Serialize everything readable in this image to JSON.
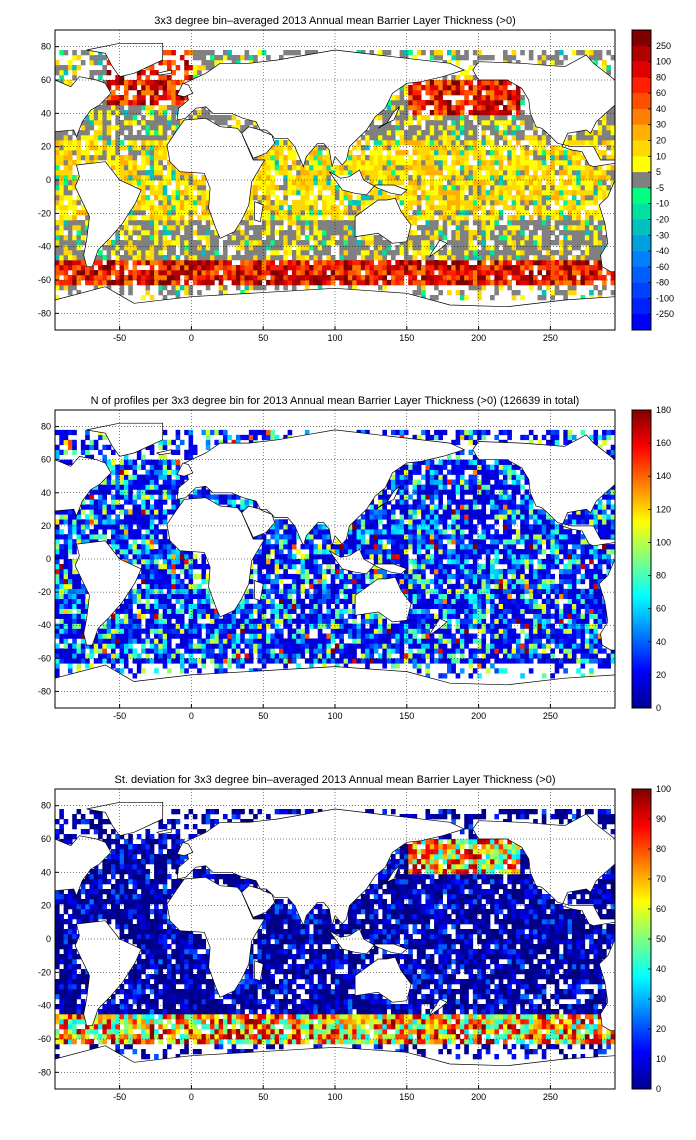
{
  "chart_data": [
    {
      "type": "heatmap",
      "title": "3x3 degree bin–averaged 2013 Annual mean Barrier Layer Thickness (>0)",
      "xlim": [
        -95,
        295
      ],
      "ylim": [
        -90,
        90
      ],
      "xticks": [
        "-50",
        "0",
        "50",
        "100",
        "150",
        "200",
        "250"
      ],
      "yticks": [
        "80",
        "60",
        "40",
        "20",
        "0",
        "-20",
        "-40",
        "-60",
        "-80"
      ],
      "grid": true,
      "colorbar": {
        "kind": "discrete",
        "labels": [
          "250",
          "100",
          "80",
          "60",
          "40",
          "30",
          "20",
          "10",
          "5",
          "-5",
          "-10",
          "-20",
          "-30",
          "-40",
          "-60",
          "-80",
          "-100",
          "-250"
        ],
        "colors": [
          "#800000",
          "#b00000",
          "#e00000",
          "#ff2000",
          "#ff5000",
          "#ff8000",
          "#ffb000",
          "#ffd800",
          "#ffff00",
          "#808080",
          "#00ff80",
          "#00e0a0",
          "#00c0c0",
          "#00a0e0",
          "#0080ff",
          "#0060ff",
          "#0040ff",
          "#0020ff",
          "#0000ff"
        ]
      },
      "pattern": "bla"
    },
    {
      "type": "heatmap",
      "title": "N of profiles per 3x3 degree bin for 2013 Annual mean Barrier Layer Thickness (>0) (126639 in total)",
      "xlim": [
        -95,
        295
      ],
      "ylim": [
        -90,
        90
      ],
      "xticks": [
        "-50",
        "0",
        "50",
        "100",
        "150",
        "200",
        "250"
      ],
      "yticks": [
        "80",
        "60",
        "40",
        "20",
        "0",
        "-20",
        "-40",
        "-60",
        "-80"
      ],
      "grid": true,
      "colorbar": {
        "kind": "continuous",
        "labels": [
          "180",
          "160",
          "140",
          "120",
          "100",
          "80",
          "60",
          "40",
          "20",
          "0"
        ],
        "range": [
          0,
          180
        ]
      },
      "pattern": "count"
    },
    {
      "type": "heatmap",
      "title": "St. deviation for 3x3 degree bin–averaged 2013 Annual mean Barrier Layer Thickness (>0)",
      "xlim": [
        -95,
        295
      ],
      "ylim": [
        -90,
        90
      ],
      "xticks": [
        "-50",
        "0",
        "50",
        "100",
        "150",
        "200",
        "250"
      ],
      "yticks": [
        "80",
        "60",
        "40",
        "20",
        "0",
        "-20",
        "-40",
        "-60",
        "-80"
      ],
      "grid": true,
      "colorbar": {
        "kind": "continuous",
        "labels": [
          "100",
          "90",
          "80",
          "70",
          "60",
          "50",
          "40",
          "30",
          "20",
          "10",
          "0"
        ],
        "range": [
          0,
          100
        ]
      },
      "pattern": "std"
    }
  ]
}
